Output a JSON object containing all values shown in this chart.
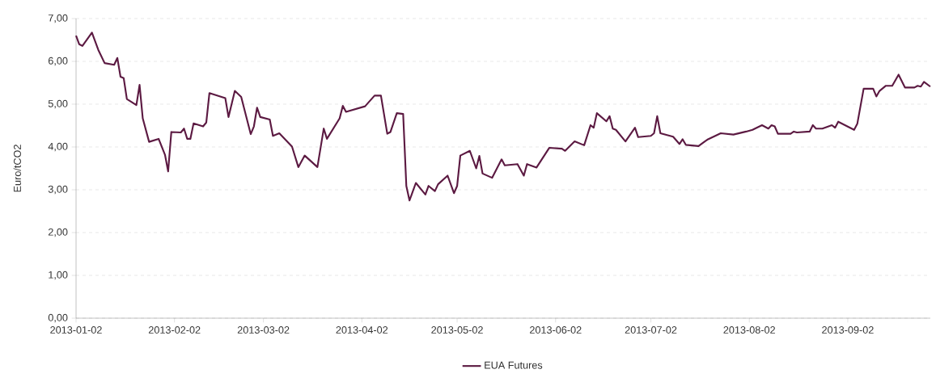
{
  "chart_data": {
    "type": "line",
    "ylabel": "Euro/tCO2",
    "x": [
      "2013-01-02",
      "2013-01-03",
      "2013-01-04",
      "2013-01-07",
      "2013-01-09",
      "2013-01-11",
      "2013-01-14",
      "2013-01-15",
      "2013-01-16",
      "2013-01-17",
      "2013-01-18",
      "2013-01-21",
      "2013-01-22",
      "2013-01-23",
      "2013-01-25",
      "2013-01-28",
      "2013-01-30",
      "2013-01-31",
      "2013-02-01",
      "2013-02-04",
      "2013-02-05",
      "2013-02-06",
      "2013-02-07",
      "2013-02-08",
      "2013-02-11",
      "2013-02-12",
      "2013-02-13",
      "2013-02-18",
      "2013-02-19",
      "2013-02-21",
      "2013-02-23",
      "2013-02-26",
      "2013-02-27",
      "2013-02-28",
      "2013-03-01",
      "2013-03-04",
      "2013-03-05",
      "2013-03-07",
      "2013-03-11",
      "2013-03-13",
      "2013-03-15",
      "2013-03-19",
      "2013-03-21",
      "2013-03-22",
      "2013-03-26",
      "2013-03-27",
      "2013-03-28",
      "2013-04-03",
      "2013-04-06",
      "2013-04-08",
      "2013-04-10",
      "2013-04-11",
      "2013-04-13",
      "2013-04-15",
      "2013-04-16",
      "2013-04-17",
      "2013-04-19",
      "2013-04-22",
      "2013-04-23",
      "2013-04-25",
      "2013-04-26",
      "2013-04-29",
      "2013-05-01",
      "2013-05-02",
      "2013-05-03",
      "2013-05-06",
      "2013-05-08",
      "2013-05-09",
      "2013-05-10",
      "2013-05-13",
      "2013-05-16",
      "2013-05-17",
      "2013-05-21",
      "2013-05-23",
      "2013-05-24",
      "2013-05-27",
      "2013-05-31",
      "2013-06-04",
      "2013-06-05",
      "2013-06-08",
      "2013-06-11",
      "2013-06-13",
      "2013-06-14",
      "2013-06-15",
      "2013-06-18",
      "2013-06-19",
      "2013-06-20",
      "2013-06-21",
      "2013-06-24",
      "2013-06-27",
      "2013-06-28",
      "2013-07-02",
      "2013-07-03",
      "2013-07-04",
      "2013-07-05",
      "2013-07-09",
      "2013-07-11",
      "2013-07-12",
      "2013-07-13",
      "2013-07-17",
      "2013-07-19",
      "2013-07-20",
      "2013-07-24",
      "2013-07-28",
      "2013-08-01",
      "2013-08-03",
      "2013-08-06",
      "2013-08-08",
      "2013-08-09",
      "2013-08-10",
      "2013-08-11",
      "2013-08-15",
      "2013-08-16",
      "2013-08-17",
      "2013-08-21",
      "2013-08-22",
      "2013-08-23",
      "2013-08-25",
      "2013-08-28",
      "2013-08-29",
      "2013-08-30",
      "2013-09-04",
      "2013-09-05",
      "2013-09-07",
      "2013-09-10",
      "2013-09-11",
      "2013-09-12",
      "2013-09-14",
      "2013-09-16",
      "2013-09-18",
      "2013-09-20",
      "2013-09-23",
      "2013-09-24",
      "2013-09-25",
      "2013-09-26",
      "2013-09-28"
    ],
    "series": [
      {
        "name": "EUA Futures",
        "color": "#5c1a42",
        "values": [
          6.6,
          6.4,
          6.36,
          6.67,
          6.27,
          5.96,
          5.92,
          6.08,
          5.64,
          5.61,
          5.12,
          4.98,
          5.45,
          4.67,
          4.12,
          4.19,
          3.82,
          3.43,
          4.35,
          4.34,
          4.43,
          4.19,
          4.19,
          4.55,
          4.48,
          4.57,
          5.26,
          5.14,
          4.7,
          5.31,
          5.17,
          4.3,
          4.48,
          4.92,
          4.7,
          4.64,
          4.26,
          4.32,
          4.01,
          3.53,
          3.8,
          3.53,
          4.43,
          4.19,
          4.67,
          4.96,
          4.82,
          4.95,
          5.2,
          5.2,
          4.31,
          4.35,
          4.79,
          4.77,
          3.09,
          2.75,
          3.16,
          2.89,
          3.09,
          2.97,
          3.13,
          3.33,
          2.92,
          3.09,
          3.8,
          3.91,
          3.5,
          3.79,
          3.38,
          3.28,
          3.71,
          3.57,
          3.6,
          3.33,
          3.6,
          3.52,
          3.98,
          3.96,
          3.91,
          4.13,
          4.04,
          4.51,
          4.45,
          4.79,
          4.6,
          4.72,
          4.43,
          4.4,
          4.13,
          4.45,
          4.23,
          4.26,
          4.32,
          4.72,
          4.32,
          4.24,
          4.07,
          4.18,
          4.05,
          4.02,
          4.13,
          4.18,
          4.32,
          4.29,
          4.36,
          4.4,
          4.51,
          4.43,
          4.51,
          4.48,
          4.31,
          4.31,
          4.36,
          4.34,
          4.36,
          4.51,
          4.43,
          4.43,
          4.51,
          4.45,
          4.59,
          4.4,
          4.54,
          5.36,
          5.36,
          5.18,
          5.31,
          5.43,
          5.43,
          5.69,
          5.39,
          5.39,
          5.43,
          5.41,
          5.52,
          5.41
        ]
      }
    ],
    "xlim": [
      "2013-01-02",
      "2013-09-28"
    ],
    "xticks": [
      "2013-01-02",
      "2013-02-02",
      "2013-03-02",
      "2013-04-02",
      "2013-05-02",
      "2013-06-02",
      "2013-07-02",
      "2013-08-02",
      "2013-09-02"
    ],
    "ylim": [
      0,
      7
    ],
    "yticks": [
      {
        "value": 0,
        "label": "0,00"
      },
      {
        "value": 1,
        "label": "1,00"
      },
      {
        "value": 2,
        "label": "2,00"
      },
      {
        "value": 3,
        "label": "3,00"
      },
      {
        "value": 4,
        "label": "4,00"
      },
      {
        "value": 5,
        "label": "5,00"
      },
      {
        "value": 6,
        "label": "6,00"
      },
      {
        "value": 7,
        "label": "7,00"
      }
    ],
    "grid": "y",
    "legend": "bottom",
    "line_style": "solid"
  }
}
